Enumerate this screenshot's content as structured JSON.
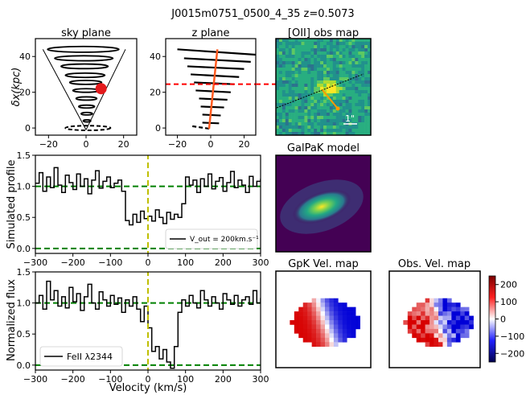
{
  "figure": {
    "suptitle": "J0015m0751_0500_4_35 z=0.5073"
  },
  "panels": {
    "sky": {
      "title": "sky plane",
      "ylabel": "δx(kpc)"
    },
    "zplane": {
      "title": "z plane"
    },
    "obsmap": {
      "title": "[OII] obs map",
      "scalebar_label": "1\""
    },
    "galpak": {
      "title": "GalPaK model"
    },
    "gpkvel": {
      "title": "GpK Vel. map"
    },
    "obsvel": {
      "title": "Obs. Vel. map"
    },
    "sim": {
      "ylabel": "Simulated profile",
      "legend": "V_out = 200km.s⁻¹"
    },
    "obs": {
      "ylabel": "Normalized flux",
      "xlabel": "Velocity (km/s)",
      "legend": "FeII λ2344"
    }
  },
  "colors": {
    "line": "#000000",
    "continuum": "#008000",
    "zero_marker": "#bfbf00",
    "cone_marker": "#e41a1c",
    "z_axis_line": "#ff5a1f",
    "cut_line": "#ff0000",
    "map_orange": "#ff9900"
  },
  "colorbar": {
    "cmap": "seismic",
    "ticks": [
      "200",
      "100",
      "0",
      "−100",
      "−200"
    ],
    "range": [
      -250,
      250
    ]
  },
  "chart_data": [
    {
      "type": "line",
      "id": "sky-plane",
      "title": "sky plane",
      "xlabel": "",
      "ylabel": "δx(kpc)",
      "xlim": [
        -27,
        27
      ],
      "ylim": [
        -4,
        50
      ],
      "xticks": [
        "−20",
        "0",
        "20"
      ],
      "yticks": [
        "0",
        "20",
        "40"
      ],
      "ellipses": [
        {
          "cx": -1.5,
          "cy": 44,
          "rx": 19,
          "ry": 1.6
        },
        {
          "cx": -1.2,
          "cy": 39,
          "rx": 15.5,
          "ry": 1.4
        },
        {
          "cx": -0.8,
          "cy": 34.5,
          "rx": 12.5,
          "ry": 1.3
        },
        {
          "cx": -0.5,
          "cy": 29.5,
          "rx": 10.5,
          "ry": 1.2
        },
        {
          "cx": -0.2,
          "cy": 25.5,
          "rx": 8.5,
          "ry": 1.1
        },
        {
          "cx": 0,
          "cy": 21,
          "rx": 7,
          "ry": 1
        },
        {
          "cx": 0.2,
          "cy": 16.5,
          "rx": 5.5,
          "ry": 0.9
        },
        {
          "cx": 0.3,
          "cy": 12,
          "rx": 4.2,
          "ry": 0.8
        },
        {
          "cx": 0.4,
          "cy": 8,
          "rx": 3,
          "ry": 0.7
        },
        {
          "cx": 0.5,
          "cy": 4,
          "rx": 2,
          "ry": 0.6
        }
      ],
      "dashed_ellipse": {
        "cx": 1,
        "cy": 0,
        "rx": 12,
        "ry": 1.3
      },
      "cone_lines": [
        [
          [
            -23,
            44
          ],
          [
            0,
            -1
          ]
        ],
        [
          [
            21,
            44
          ],
          [
            0,
            -1
          ]
        ]
      ],
      "marker": {
        "x": 8,
        "y": 22,
        "r": 3
      }
    },
    {
      "type": "line",
      "id": "z-plane",
      "title": "z plane",
      "xlim": [
        -27,
        27
      ],
      "ylim": [
        -4,
        50
      ],
      "xticks": [
        "−20",
        "0",
        "20"
      ],
      "yticks": [
        "0",
        "20",
        "40"
      ],
      "segments": [
        [
          [
            -20,
            44
          ],
          [
            27,
            41
          ]
        ],
        [
          [
            -16,
            39
          ],
          [
            24,
            37
          ]
        ],
        [
          [
            -14,
            34.5
          ],
          [
            20,
            33
          ]
        ],
        [
          [
            -12,
            30
          ],
          [
            17,
            28.5
          ]
        ],
        [
          [
            -10,
            25.5
          ],
          [
            14,
            24.5
          ]
        ],
        [
          [
            -9,
            21
          ],
          [
            12,
            20
          ]
        ],
        [
          [
            -7,
            16.5
          ],
          [
            10,
            15.8
          ]
        ],
        [
          [
            -6,
            12
          ],
          [
            8,
            11.5
          ]
        ],
        [
          [
            -5,
            7.5
          ],
          [
            6,
            7
          ]
        ],
        [
          [
            -5,
            3
          ],
          [
            5,
            2.6
          ]
        ]
      ],
      "dashed_segment": [
        [
          -11,
          1
        ],
        [
          0,
          -0.5
        ]
      ],
      "axis_line": [
        [
          -1,
          -0.5
        ],
        [
          4,
          44
        ]
      ],
      "cut_line_y": 24.5
    },
    {
      "type": "line",
      "id": "simulated-profile",
      "xlabel": "",
      "ylabel": "Simulated profile",
      "xlim": [
        -300,
        300
      ],
      "ylim": [
        -0.08,
        1.5
      ],
      "xticks": [
        "−300",
        "−200",
        "−100",
        "0",
        "100",
        "200",
        "300"
      ],
      "yticks": [
        "0.0",
        "0.5",
        "1.0",
        "1.5"
      ],
      "continuum": 1.0,
      "zero": 0.0,
      "vline": 0,
      "series": [
        {
          "name": "V_out = 200km.s⁻¹",
          "x": [
            -300,
            -290,
            -280,
            -270,
            -260,
            -250,
            -240,
            -230,
            -220,
            -210,
            -200,
            -190,
            -180,
            -170,
            -160,
            -150,
            -140,
            -130,
            -120,
            -110,
            -100,
            -90,
            -80,
            -70,
            -60,
            -50,
            -40,
            -30,
            -20,
            -10,
            0,
            10,
            20,
            30,
            40,
            50,
            60,
            70,
            80,
            90,
            100,
            110,
            120,
            130,
            140,
            150,
            160,
            170,
            180,
            190,
            200,
            210,
            220,
            230,
            240,
            250,
            260,
            270,
            280,
            290,
            300
          ],
          "y": [
            1.05,
            1.22,
            0.92,
            1.15,
            0.98,
            1.3,
            1.02,
            0.9,
            1.18,
            1.06,
            0.95,
            1.2,
            1.0,
            1.12,
            0.88,
            1.1,
            1.25,
            0.97,
            1.08,
            1.15,
            0.98,
            1.05,
            1.1,
            0.92,
            0.45,
            0.38,
            0.55,
            0.42,
            0.6,
            0.48,
            0.52,
            0.44,
            0.62,
            0.5,
            0.4,
            0.58,
            0.47,
            0.55,
            0.5,
            0.72,
            1.15,
            1.02,
            1.1,
            0.9,
            1.12,
            1.0,
            1.2,
            0.96,
            1.08,
            1.14,
            0.92,
            1.06,
            1.24,
            0.98,
            1.1,
            1.02,
            0.9,
            1.16,
            1.0,
            1.08,
            1.12
          ]
        }
      ]
    },
    {
      "type": "line",
      "id": "normalized-flux",
      "xlabel": "Velocity (km/s)",
      "ylabel": "Normalized flux",
      "xlim": [
        -300,
        300
      ],
      "ylim": [
        -0.08,
        1.5
      ],
      "xticks": [
        "−300",
        "−200",
        "−100",
        "0",
        "100",
        "200",
        "300"
      ],
      "yticks": [
        "0.0",
        "0.5",
        "1.0",
        "1.5"
      ],
      "continuum": 1.0,
      "zero": 0.0,
      "vline": 0,
      "series": [
        {
          "name": "FeII λ2344",
          "x": [
            -300,
            -290,
            -280,
            -270,
            -260,
            -250,
            -240,
            -230,
            -220,
            -210,
            -200,
            -190,
            -180,
            -170,
            -160,
            -150,
            -140,
            -130,
            -120,
            -110,
            -100,
            -90,
            -80,
            -70,
            -60,
            -50,
            -40,
            -30,
            -20,
            -10,
            0,
            10,
            20,
            30,
            40,
            50,
            60,
            70,
            80,
            90,
            100,
            110,
            120,
            130,
            140,
            150,
            160,
            170,
            180,
            190,
            200,
            210,
            220,
            230,
            240,
            250,
            260,
            270,
            280,
            290,
            300
          ],
          "y": [
            1.0,
            1.12,
            0.9,
            1.35,
            1.05,
            1.2,
            0.95,
            1.1,
            0.92,
            1.25,
            1.02,
            1.15,
            0.88,
            1.1,
            1.3,
            1.0,
            0.9,
            1.18,
            1.05,
            0.95,
            1.12,
            0.98,
            1.08,
            0.85,
            1.05,
            0.95,
            1.1,
            0.9,
            0.7,
            0.95,
            0.6,
            0.22,
            0.3,
            0.1,
            0.25,
            0.05,
            -0.05,
            0.3,
            0.85,
            1.05,
            0.95,
            1.12,
            1.0,
            0.92,
            1.2,
            1.05,
            0.95,
            1.1,
            1.0,
            0.9,
            1.15,
            1.05,
            0.98,
            1.12,
            0.95,
            1.05,
            1.1,
            0.98,
            1.2,
            1.0,
            1.08
          ]
        }
      ]
    }
  ]
}
